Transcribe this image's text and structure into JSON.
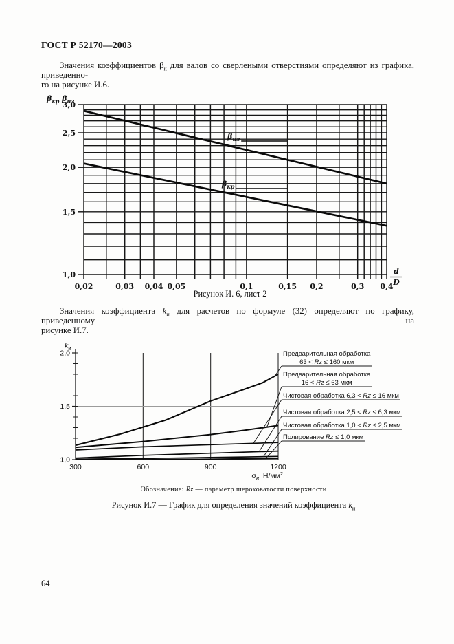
{
  "page": {
    "header": "ГОСТ Р 52170—2003",
    "page_number": "64"
  },
  "para1": {
    "before_sub": "Значения коэффициентов β",
    "sub": "к",
    "line1_rest": " для валов со сверлеными отверстиями определяют из графика, приведенно-",
    "line2": "го на рисунке И.6."
  },
  "para2": {
    "before_k": "Значения коэффициента ",
    "k": "k",
    "sub": "и",
    "line1_rest": " для расчетов по формуле (32) определяют по графику, приведенному на",
    "line2": "рисунке И.7."
  },
  "chart_data": [
    {
      "type": "line",
      "title": "Рисунок И. 6, лист 2",
      "xlabel": "d/D",
      "xlabel_parts": {
        "num": "d",
        "den": "D"
      },
      "ylabel": "βкр βиз",
      "ylabel_parts": [
        {
          "base": "β",
          "sub": "кр"
        },
        {
          "base": "β",
          "sub": "из"
        }
      ],
      "x_scale": "log",
      "y_scale": "log",
      "xlim": [
        0.02,
        0.4
      ],
      "ylim": [
        1.0,
        3.0
      ],
      "x_major_ticks": [
        0.02,
        0.03,
        0.04,
        0.05,
        0.1,
        0.15,
        0.2,
        0.3,
        0.4
      ],
      "x_major_labels": [
        "0,02",
        "0,03",
        "0,04",
        "0,05",
        "0,1",
        "0,15",
        "0,2",
        "0,3",
        "0,4"
      ],
      "x_gridlines": [
        0.02,
        0.025,
        0.03,
        0.035,
        0.04,
        0.05,
        0.06,
        0.07,
        0.08,
        0.09,
        0.1,
        0.15,
        0.2,
        0.25,
        0.3,
        0.32,
        0.34,
        0.36,
        0.38,
        0.4
      ],
      "y_major_ticks": [
        1.0,
        1.5,
        2.0,
        2.5,
        3.0
      ],
      "y_major_labels": [
        "1,0",
        "1,5",
        "2,0",
        "2,5",
        "3,0"
      ],
      "y_gridlines": [
        1.0,
        1.1,
        1.2,
        1.3,
        1.4,
        1.5,
        1.6,
        1.7,
        1.8,
        1.9,
        2.0,
        2.1,
        2.2,
        2.3,
        2.4,
        2.5,
        2.6,
        2.7,
        2.8,
        2.9,
        3.0
      ],
      "grid": true,
      "legend": "curve labels inline",
      "series": [
        {
          "id": "iz",
          "name": "βиз",
          "name_parts": {
            "base": "β",
            "sub": "из"
          },
          "points": [
            [
              0.02,
              2.88
            ],
            [
              0.4,
              1.8
            ]
          ]
        },
        {
          "id": "kr",
          "name": "βкр",
          "name_parts": {
            "base": "β",
            "sub": "кр"
          },
          "points": [
            [
              0.02,
              2.05
            ],
            [
              0.4,
              1.37
            ]
          ]
        }
      ]
    },
    {
      "type": "line",
      "title": "Рисунок И.7 — График для определения значений коэффициента kи",
      "caption_parts": {
        "before": "Рисунок И.7 — График для определения значений коэффициента ",
        "k": "k",
        "sub": "и"
      },
      "note": "Обозначение: Rz — параметр шероховатости поверхности",
      "note_parts": {
        "before": "Обозначение: ",
        "rz": "Rz",
        "rest": " — параметр шероховатости поверхности"
      },
      "xlabel": "σв, Н/мм²",
      "xlabel_parts": {
        "base": "σ",
        "sub": "в",
        "rest": ", Н/мм",
        "sup": "2"
      },
      "ylabel": "kи",
      "ylabel_parts": {
        "base": "k",
        "sub": "и"
      },
      "xlim": [
        300,
        1200
      ],
      "ylim": [
        1.0,
        2.0
      ],
      "x_ticks": [
        300,
        600,
        900,
        1200
      ],
      "y_ticks": [
        1.0,
        1.5,
        2.0
      ],
      "y_tick_labels": [
        "1,0",
        "1,5",
        "2,0"
      ],
      "y_minor_step": 0.1,
      "grid": "vertical at 600 and 900, horizontal at 1.5",
      "legend": "right side callout labels with leader lines",
      "series": [
        {
          "label_lines": [
            "Предварительная обработка",
            "63 < Rz ≤ 160 мкм"
          ],
          "points": [
            [
              300,
              1.135
            ],
            [
              500,
              1.24
            ],
            [
              700,
              1.37
            ],
            [
              900,
              1.55
            ],
            [
              1050,
              1.66
            ],
            [
              1130,
              1.72
            ],
            [
              1200,
              1.8
            ]
          ]
        },
        {
          "label_lines": [
            "Предварительная обработка",
            "16 < Rz ≤ 63 мкм"
          ],
          "points": [
            [
              300,
              1.115
            ],
            [
              600,
              1.17
            ],
            [
              900,
              1.235
            ],
            [
              1050,
              1.275
            ],
            [
              1200,
              1.32
            ]
          ]
        },
        {
          "label_lines": [
            "Чистовая обработка 6,3 < Rz ≤ 16 мкм"
          ],
          "points": [
            [
              300,
              1.09
            ],
            [
              600,
              1.12
            ],
            [
              900,
              1.14
            ],
            [
              1200,
              1.16
            ]
          ]
        },
        {
          "label_lines": [
            "Чистовая обработка 2,5 < Rz ≤ 6,3 мкм"
          ],
          "points": [
            [
              300,
              1.015
            ],
            [
              600,
              1.04
            ],
            [
              900,
              1.06
            ],
            [
              1200,
              1.08
            ]
          ]
        },
        {
          "label_lines": [
            "Чистовая обработка 1,0 < Rz ≤ 2,5 мкм"
          ],
          "points": [
            [
              300,
              1.005
            ],
            [
              600,
              1.01
            ],
            [
              900,
              1.02
            ],
            [
              1200,
              1.03
            ]
          ]
        },
        {
          "label_lines": [
            "Полирование Rz ≤ 1,0 мкм"
          ],
          "points": [
            [
              300,
              1.0
            ],
            [
              600,
              1.0
            ],
            [
              900,
              1.005
            ],
            [
              1200,
              1.012
            ]
          ]
        }
      ]
    }
  ]
}
